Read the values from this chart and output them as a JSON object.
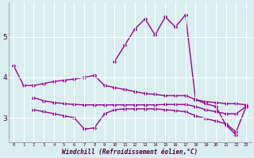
{
  "xlabel": "Windchill (Refroidissement éolien,°C)",
  "x": [
    0,
    1,
    2,
    3,
    4,
    5,
    6,
    7,
    8,
    9,
    10,
    11,
    12,
    13,
    14,
    15,
    16,
    17,
    18,
    19,
    20,
    21,
    22,
    23
  ],
  "lineA": [
    4.3,
    3.8,
    3.8,
    3.85,
    3.9,
    3.93,
    3.96,
    4.0,
    4.05,
    3.8,
    3.75,
    3.7,
    3.65,
    3.6,
    3.58,
    3.55,
    3.55,
    3.55,
    3.45,
    3.4,
    3.38,
    3.35,
    3.35,
    3.32
  ],
  "lineB": [
    null,
    null,
    3.5,
    3.42,
    3.38,
    3.35,
    3.33,
    3.32,
    3.32,
    3.32,
    3.32,
    3.32,
    3.32,
    3.32,
    3.32,
    3.33,
    3.33,
    3.33,
    3.28,
    3.2,
    3.15,
    3.1,
    3.1,
    3.28
  ],
  "lineC": [
    null,
    null,
    3.2,
    3.15,
    3.1,
    3.05,
    3.0,
    2.72,
    2.75,
    3.1,
    3.2,
    3.22,
    3.22,
    3.22,
    3.22,
    3.2,
    3.18,
    3.15,
    3.05,
    2.98,
    2.92,
    2.85,
    2.65,
    3.28
  ],
  "lineD": [
    null,
    null,
    null,
    null,
    null,
    null,
    null,
    null,
    null,
    null,
    4.4,
    4.8,
    5.2,
    5.45,
    5.05,
    5.5,
    5.25,
    5.55,
    3.45,
    3.35,
    3.28,
    2.82,
    2.58,
    null
  ],
  "bg_color": "#d9efef",
  "line_color": "#990099",
  "grid_color": "#ffffff",
  "ylim": [
    2.4,
    5.85
  ],
  "yticks": [
    3,
    4,
    5
  ],
  "marker": "D",
  "markersize": 2.5,
  "linewidth": 1.0
}
